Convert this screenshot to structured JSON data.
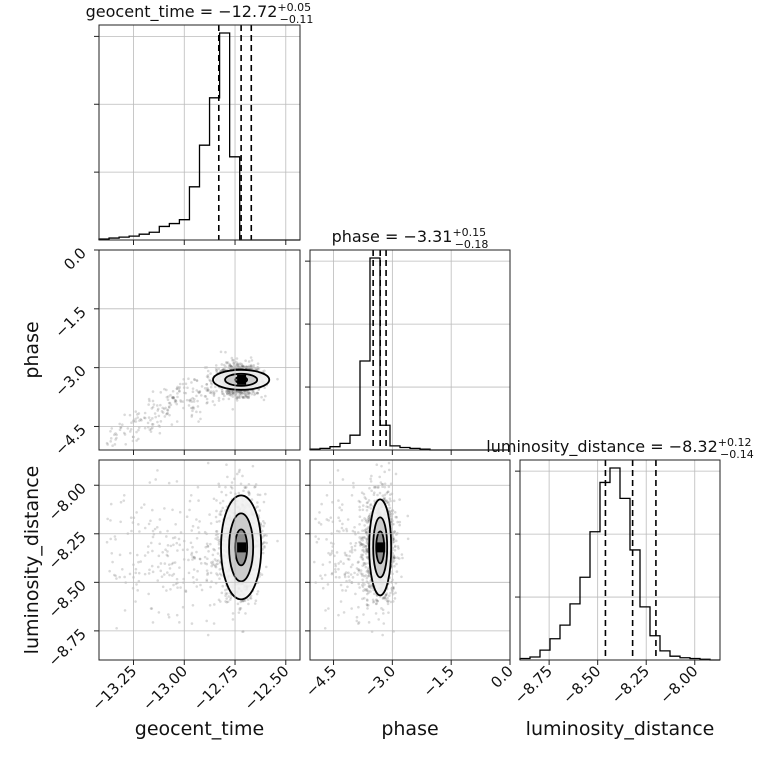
{
  "chart_data": {
    "type": "corner",
    "parameters": [
      "geocent_time",
      "phase",
      "luminosity_distance"
    ],
    "axis_labels": {
      "x": [
        "geocent_time",
        "phase",
        "luminosity_distance"
      ],
      "y": [
        "phase",
        "luminosity_distance"
      ]
    },
    "titles": [
      {
        "name": "geocent_time",
        "value": "−12.72",
        "plus": "+0.05",
        "minus": "−0.11"
      },
      {
        "name": "phase",
        "value": "−3.31",
        "plus": "+0.15",
        "minus": "−0.18"
      },
      {
        "name": "luminosity_distance",
        "value": "−8.32",
        "plus": "+0.12",
        "minus": "−0.14"
      }
    ],
    "ranges": [
      [
        -13.42,
        -12.43
      ],
      [
        -5.1,
        0.0
      ],
      [
        -8.9,
        -7.87
      ]
    ],
    "ticks": [
      {
        "values": [
          -13.25,
          -13.0,
          -12.75,
          -12.5
        ],
        "labels": [
          "−13.25",
          "−13.00",
          "−12.75",
          "−12.50"
        ]
      },
      {
        "values": [
          -4.5,
          -3.0,
          -1.5,
          0.0
        ],
        "labels": [
          "−4.5",
          "−3.0",
          "−1.5",
          "0.0"
        ]
      },
      {
        "values": [
          -8.75,
          -8.5,
          -8.25,
          -8.0
        ],
        "labels": [
          "−8.75",
          "−8.50",
          "−8.25",
          "−8.00"
        ]
      }
    ],
    "quantiles": [
      [
        -12.83,
        -12.72,
        -12.67
      ],
      [
        -3.49,
        -3.31,
        -3.16
      ],
      [
        -8.46,
        -8.32,
        -8.2
      ]
    ],
    "histograms": [
      {
        "edges_lo": -13.42,
        "edges_hi": -12.43,
        "counts": [
          1,
          2,
          3,
          4,
          6,
          8,
          14,
          17,
          21,
          55,
          98,
          147,
          214,
          86,
          0,
          0,
          0,
          0,
          0,
          0
        ]
      },
      {
        "edges_lo": -5.1,
        "edges_hi": 0.0,
        "counts": [
          1,
          2,
          4,
          8,
          18,
          108,
          233,
          30,
          5,
          3,
          2,
          1,
          0,
          0,
          0,
          0,
          0,
          0,
          0,
          0
        ]
      },
      {
        "edges_lo": -8.9,
        "edges_hi": -7.87,
        "counts": [
          2,
          4,
          13,
          28,
          46,
          74,
          109,
          169,
          234,
          253,
          213,
          145,
          70,
          32,
          12,
          5,
          3,
          2,
          1,
          0
        ]
      }
    ],
    "scatter_color": "#555555",
    "line_color": "#000000",
    "grid": true
  }
}
